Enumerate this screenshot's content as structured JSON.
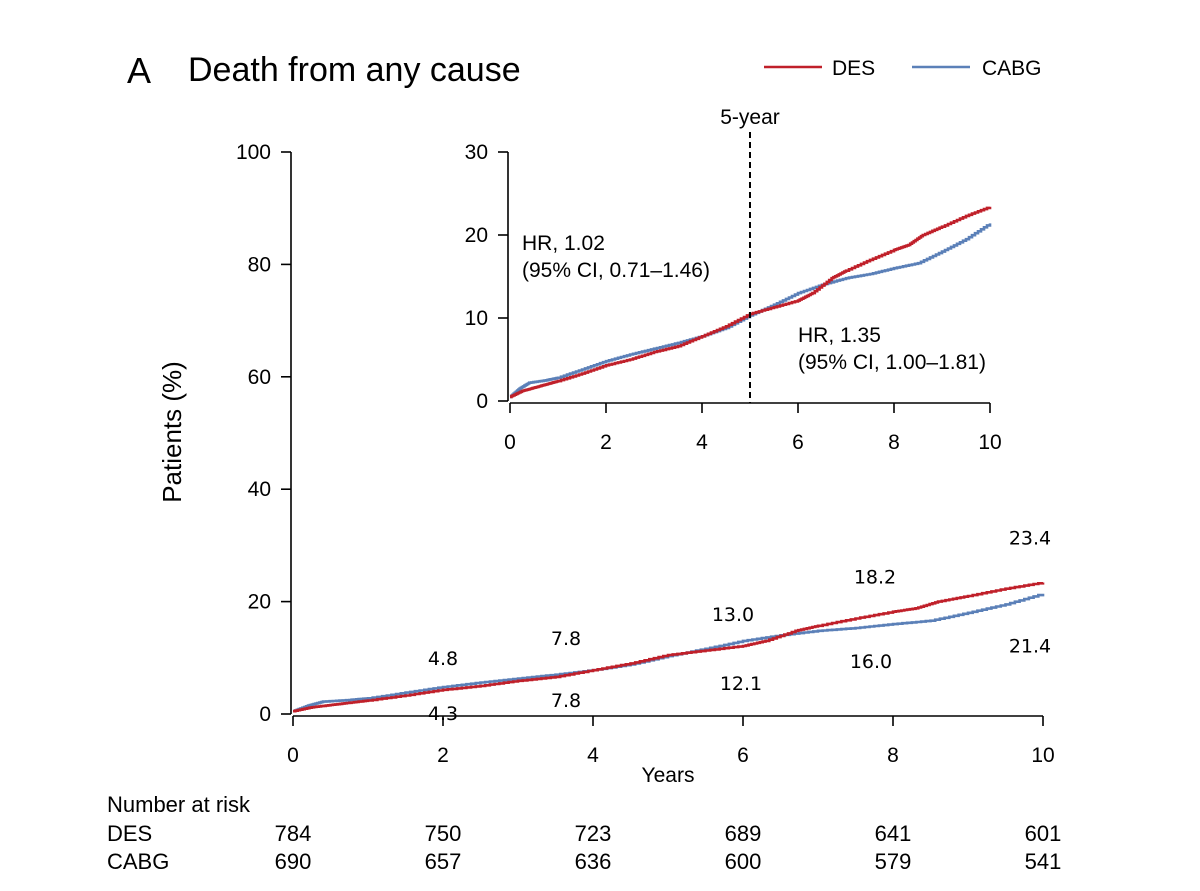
{
  "panel_letter": "A",
  "chart_data": [
    {
      "type": "line",
      "title": "Death from any cause",
      "xlabel": "Years",
      "ylabel": "Patients (%)",
      "xlim": [
        0,
        10
      ],
      "ylim": [
        0,
        100
      ],
      "xticks": [
        "0",
        "2",
        "4",
        "6",
        "8",
        "10"
      ],
      "yticks": [
        "0",
        "20",
        "40",
        "60",
        "80",
        "100"
      ],
      "legend": {
        "position": "top-right",
        "entries": [
          "DES",
          "CABG"
        ]
      },
      "colors": {
        "DES": "#c0202a",
        "CABG": "#5b80b8"
      },
      "series": [
        {
          "name": "DES",
          "x": [
            0,
            0.25,
            0.5,
            0.75,
            1.0,
            1.5,
            2.0,
            2.5,
            3.0,
            3.5,
            4.0,
            4.5,
            5.0,
            5.5,
            6.0,
            6.3,
            6.7,
            7.0,
            7.5,
            8.0,
            8.3,
            8.6,
            9.0,
            9.5,
            10.0
          ],
          "y": [
            0.5,
            1.2,
            1.6,
            2.0,
            2.4,
            3.3,
            4.3,
            5.0,
            5.9,
            6.6,
            7.8,
            9.0,
            10.5,
            11.3,
            12.1,
            13.0,
            14.8,
            15.7,
            17.0,
            18.2,
            18.8,
            20.0,
            21.0,
            22.3,
            23.4
          ]
        },
        {
          "name": "CABG",
          "x": [
            0,
            0.2,
            0.4,
            0.75,
            1.0,
            1.5,
            2.0,
            2.5,
            3.0,
            3.5,
            4.0,
            4.5,
            5.0,
            5.5,
            6.0,
            6.5,
            7.0,
            7.5,
            8.0,
            8.5,
            9.0,
            9.5,
            10.0
          ],
          "y": [
            0.5,
            1.5,
            2.2,
            2.5,
            2.8,
            3.8,
            4.8,
            5.6,
            6.3,
            7.0,
            7.8,
            8.8,
            10.3,
            11.6,
            13.0,
            14.0,
            14.8,
            15.3,
            16.0,
            16.6,
            18.0,
            19.5,
            21.4
          ]
        }
      ],
      "data_labels": [
        {
          "text": "4.8",
          "series": "CABG",
          "x": 2,
          "y": 4.8
        },
        {
          "text": "4.3",
          "series": "DES",
          "x": 2,
          "y": 4.3
        },
        {
          "text": "7.8",
          "series": "CABG",
          "x": 4,
          "y": 7.8
        },
        {
          "text": "7.8",
          "series": "DES",
          "x": 4,
          "y": 7.8
        },
        {
          "text": "13.0",
          "series": "CABG",
          "x": 6,
          "y": 13.0
        },
        {
          "text": "12.1",
          "series": "DES",
          "x": 6,
          "y": 12.1
        },
        {
          "text": "18.2",
          "series": "DES",
          "x": 8,
          "y": 18.2
        },
        {
          "text": "16.0",
          "series": "CABG",
          "x": 8,
          "y": 16.0
        },
        {
          "text": "23.4",
          "series": "DES",
          "x": 10,
          "y": 23.4
        },
        {
          "text": "21.4",
          "series": "CABG",
          "x": 10,
          "y": 21.4
        }
      ],
      "risk_table": {
        "title": "Number at risk",
        "rows": [
          {
            "label": "DES",
            "values": [
              "784",
              "750",
              "723",
              "689",
              "641",
              "601"
            ]
          },
          {
            "label": "CABG",
            "values": [
              "690",
              "657",
              "636",
              "600",
              "579",
              "541"
            ]
          }
        ]
      }
    },
    {
      "type": "line",
      "role": "inset",
      "xlim": [
        0,
        10
      ],
      "ylim": [
        0,
        30
      ],
      "xticks": [
        "0",
        "2",
        "4",
        "6",
        "8",
        "10"
      ],
      "yticks": [
        "0",
        "10",
        "20",
        "30"
      ],
      "reference_line": {
        "x": 5,
        "label": "5-year",
        "style": "dashed"
      },
      "annotations": [
        {
          "line1": "HR, 1.02",
          "line2": "(95% CI, 0.71–1.46)"
        },
        {
          "line1": "HR, 1.35",
          "line2": "(95% CI, 1.00–1.81)"
        }
      ]
    }
  ]
}
